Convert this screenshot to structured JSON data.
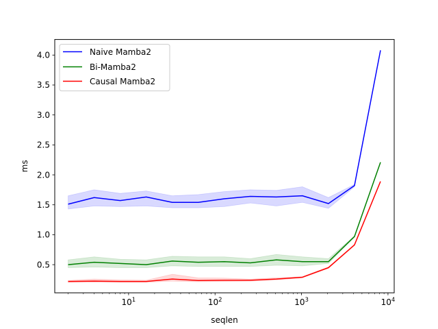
{
  "chart_data": {
    "type": "line",
    "xlabel": "seqlen",
    "ylabel": "ms",
    "xscale": "log",
    "xlim": [
      1.4,
      11800
    ],
    "ylim": [
      0.03,
      4.26
    ],
    "x_ticks": [
      {
        "value": 10,
        "base": "10",
        "exp": "1"
      },
      {
        "value": 100,
        "base": "10",
        "exp": "2"
      },
      {
        "value": 1000,
        "base": "10",
        "exp": "3"
      },
      {
        "value": 10000,
        "base": "10",
        "exp": "4"
      }
    ],
    "y_ticks": [
      "0.5",
      "1.0",
      "1.5",
      "2.0",
      "2.5",
      "3.0",
      "3.5",
      "4.0"
    ],
    "grid": false,
    "legend_position": "top-left",
    "x": [
      2,
      4,
      8,
      16,
      32,
      64,
      128,
      256,
      512,
      1024,
      2048,
      4096,
      8192
    ],
    "series": [
      {
        "name": "Naive Mamba2",
        "color": "#0000ff",
        "values": [
          1.51,
          1.62,
          1.57,
          1.63,
          1.54,
          1.54,
          1.6,
          1.64,
          1.63,
          1.65,
          1.52,
          1.82,
          4.08
        ],
        "lower": [
          1.43,
          1.48,
          1.47,
          1.48,
          1.45,
          1.45,
          1.47,
          1.53,
          1.48,
          1.54,
          1.44,
          1.8,
          4.08
        ],
        "upper": [
          1.65,
          1.75,
          1.69,
          1.73,
          1.65,
          1.67,
          1.72,
          1.75,
          1.74,
          1.8,
          1.62,
          1.84,
          4.08
        ]
      },
      {
        "name": "Bi-Mamba2",
        "color": "#008000",
        "values": [
          0.5,
          0.54,
          0.52,
          0.5,
          0.56,
          0.54,
          0.55,
          0.53,
          0.58,
          0.55,
          0.55,
          0.97,
          2.21
        ],
        "lower": [
          0.45,
          0.46,
          0.45,
          0.45,
          0.48,
          0.47,
          0.47,
          0.47,
          0.49,
          0.48,
          0.52,
          0.96,
          2.21
        ],
        "upper": [
          0.58,
          0.63,
          0.59,
          0.58,
          0.64,
          0.63,
          0.63,
          0.6,
          0.67,
          0.63,
          0.6,
          0.98,
          2.21
        ]
      },
      {
        "name": "Causal Mamba2",
        "color": "#ff0000",
        "values": [
          0.22,
          0.225,
          0.22,
          0.22,
          0.26,
          0.235,
          0.24,
          0.24,
          0.26,
          0.29,
          0.45,
          0.83,
          1.89
        ],
        "lower": [
          0.205,
          0.205,
          0.205,
          0.205,
          0.225,
          0.215,
          0.22,
          0.225,
          0.245,
          0.28,
          0.44,
          0.82,
          1.89
        ],
        "upper": [
          0.235,
          0.26,
          0.245,
          0.24,
          0.34,
          0.28,
          0.275,
          0.26,
          0.28,
          0.3,
          0.46,
          0.84,
          1.89
        ]
      }
    ]
  }
}
